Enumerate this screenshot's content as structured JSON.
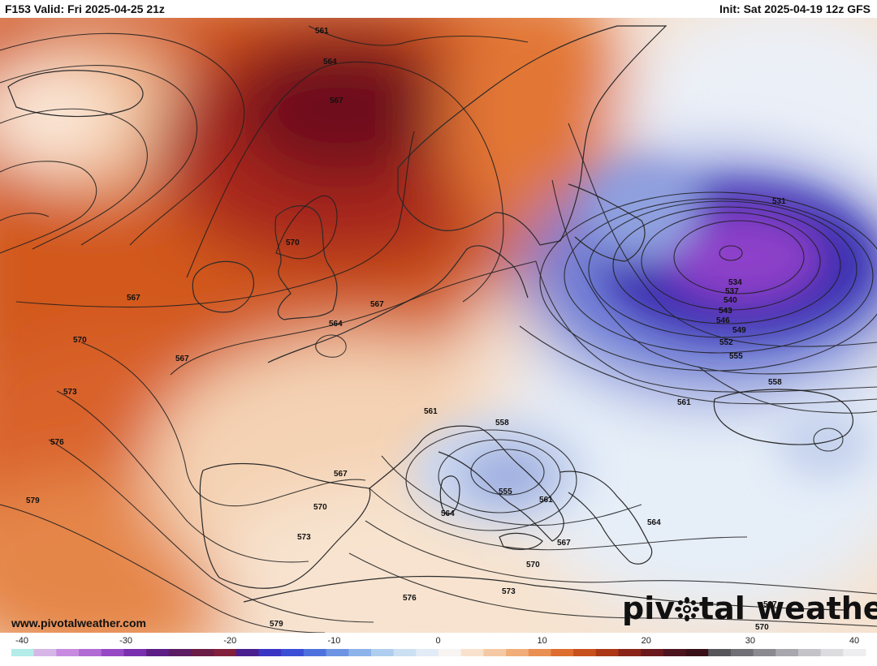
{
  "header": {
    "valid_label": "F153 Valid: Fri 2025-04-25 21z",
    "init_label": "Init: Sat 2025-04-19 12z GFS"
  },
  "map": {
    "description_text": "",
    "contour_labels": [
      "561",
      "564",
      "567",
      "570",
      "567",
      "567",
      "564",
      "567",
      "570",
      "573",
      "576",
      "579",
      "531",
      "534",
      "537",
      "540",
      "543",
      "546",
      "549",
      "552",
      "555",
      "558",
      "561",
      "558",
      "561",
      "555",
      "561",
      "564",
      "567",
      "570",
      "573",
      "567",
      "570",
      "573",
      "576",
      "579",
      "564",
      "567",
      "570"
    ],
    "colors": {
      "warm_extreme": "#6e0a1e",
      "warm_deep": "#a8261a",
      "warm_mid": "#d2581c",
      "warm_light": "#ef9a5a",
      "neutral_light": "#f6d9bf",
      "cold_light": "#dbe6f5",
      "cold_mid": "#6f7fd6",
      "cold_deep": "#3b2fb0",
      "cold_core": "#8d3fc9",
      "land_line": "#2b2b2b",
      "contour_line": "#1e1e1e"
    }
  },
  "watermark": {
    "text_left": "piv",
    "text_right": "tal weather",
    "logo_icon": "sun-flower-icon"
  },
  "website": "www.pivotalweather.com",
  "colorbar": {
    "tick_labels": [
      "-40",
      "-30",
      "-20",
      "-10",
      "0",
      "10",
      "20",
      "30",
      "40"
    ],
    "stops": [
      "#b3ece8",
      "#d6b5e7",
      "#c78ce0",
      "#b26ad5",
      "#9749c5",
      "#7a2fae",
      "#5d1f86",
      "#5b1c63",
      "#6a1d46",
      "#80203c",
      "#4a1f8e",
      "#3b35c4",
      "#3a4fd6",
      "#4e72dd",
      "#6d94e3",
      "#8cb3ea",
      "#afcdee",
      "#cbe0f2",
      "#e2ecf6",
      "#f7f4f1",
      "#f9e2cd",
      "#f5c9a3",
      "#f1ae7a",
      "#ea8f52",
      "#dd6e2f",
      "#c8501c",
      "#ab3716",
      "#8a2418",
      "#6a1a1c",
      "#4c141f",
      "#3a1018",
      "#55555a",
      "#6f6f75",
      "#8a8a90",
      "#a7a7ad",
      "#c3c3c8",
      "#dcdce0",
      "#eeeef0"
    ]
  }
}
